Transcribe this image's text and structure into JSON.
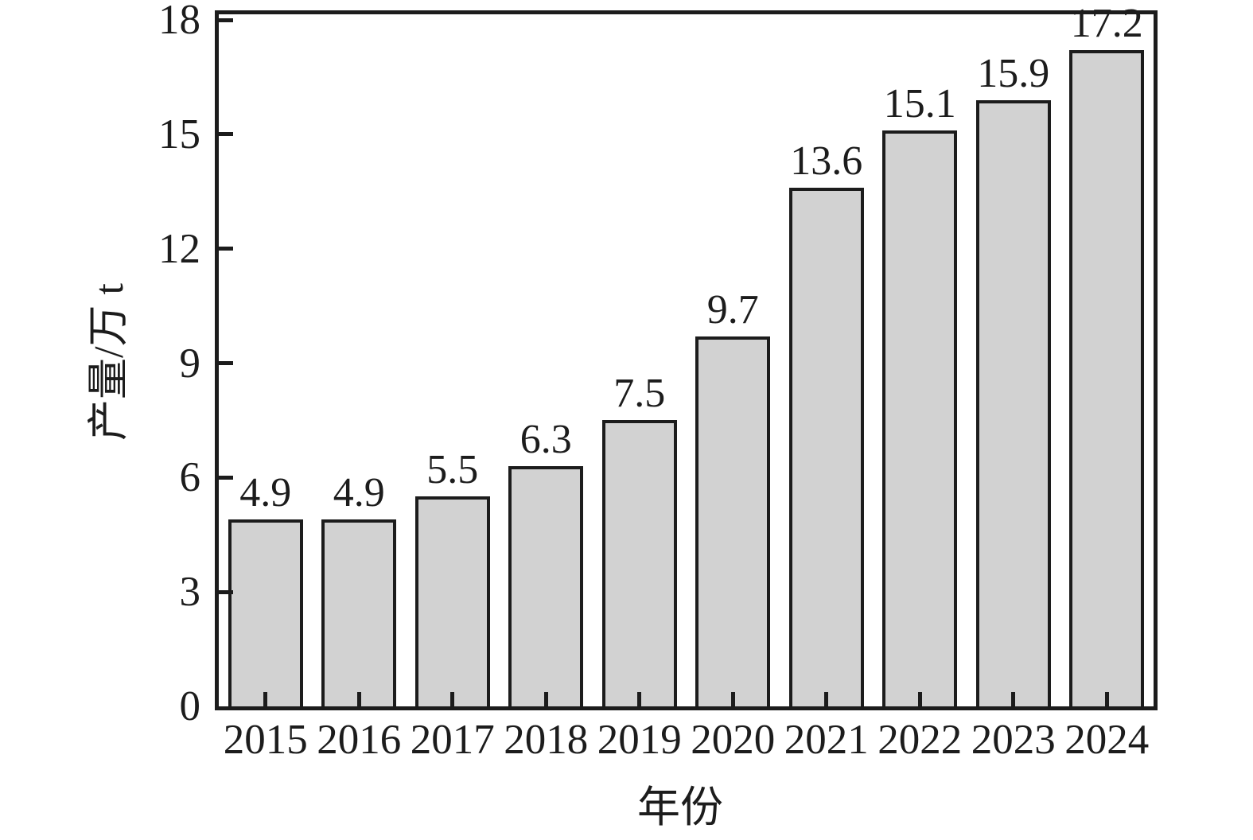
{
  "chart_data": {
    "type": "bar",
    "categories": [
      "2015",
      "2016",
      "2017",
      "2018",
      "2019",
      "2020",
      "2021",
      "2022",
      "2023",
      "2024"
    ],
    "values": [
      4.9,
      4.9,
      5.5,
      6.3,
      7.5,
      9.7,
      13.6,
      15.1,
      15.9,
      17.2
    ],
    "value_labels": [
      "4.9",
      "4.9",
      "5.5",
      "6.3",
      "7.5",
      "9.7",
      "13.6",
      "15.1",
      "15.9",
      "17.2"
    ],
    "title": "",
    "xlabel": "年份",
    "ylabel": "产量/万 t",
    "ylim": [
      0,
      18
    ],
    "yticks": [
      0,
      3,
      6,
      9,
      12,
      15,
      18
    ],
    "grid": false,
    "legend_position": "none",
    "bar_fill_color": "#d2d2d2",
    "bar_edge_color": "#1c1c1c",
    "axis_color": "#1c1c1c",
    "background_color": "#ffffff"
  }
}
